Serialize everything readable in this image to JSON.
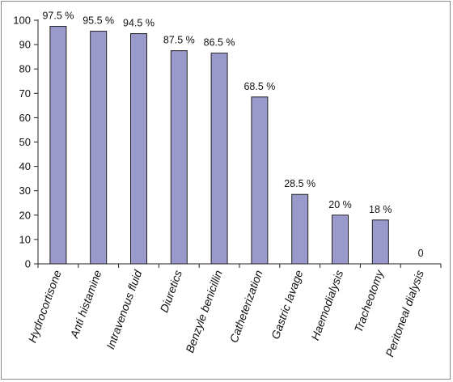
{
  "chart_data": {
    "type": "bar",
    "title": "",
    "xlabel": "",
    "ylabel": "",
    "categories": [
      "Hydrocortisone",
      "Anti histamine",
      "Intravenous fluid",
      "Diuretics",
      "Benzyle benicillin",
      "Catheterization",
      "Gastric lavage",
      "Haemodialysis",
      "Tracheotomy",
      "Peritoneal dialysis"
    ],
    "values": [
      97.5,
      95.5,
      94.5,
      87.5,
      86.5,
      68.5,
      28.5,
      20,
      18,
      0
    ],
    "data_labels": [
      "97.5 %",
      "95.5 %",
      "94.5  %",
      "87.5 %",
      "86.5 %",
      "68.5 %",
      "28.5 %",
      "20 %",
      "18 %",
      "0"
    ],
    "ylim": [
      0,
      100
    ],
    "yticks": [
      0,
      10,
      20,
      30,
      40,
      50,
      60,
      70,
      80,
      90,
      100
    ],
    "grid": false,
    "bar_color": "#9999cc",
    "bar_edge_color": "#222222"
  }
}
